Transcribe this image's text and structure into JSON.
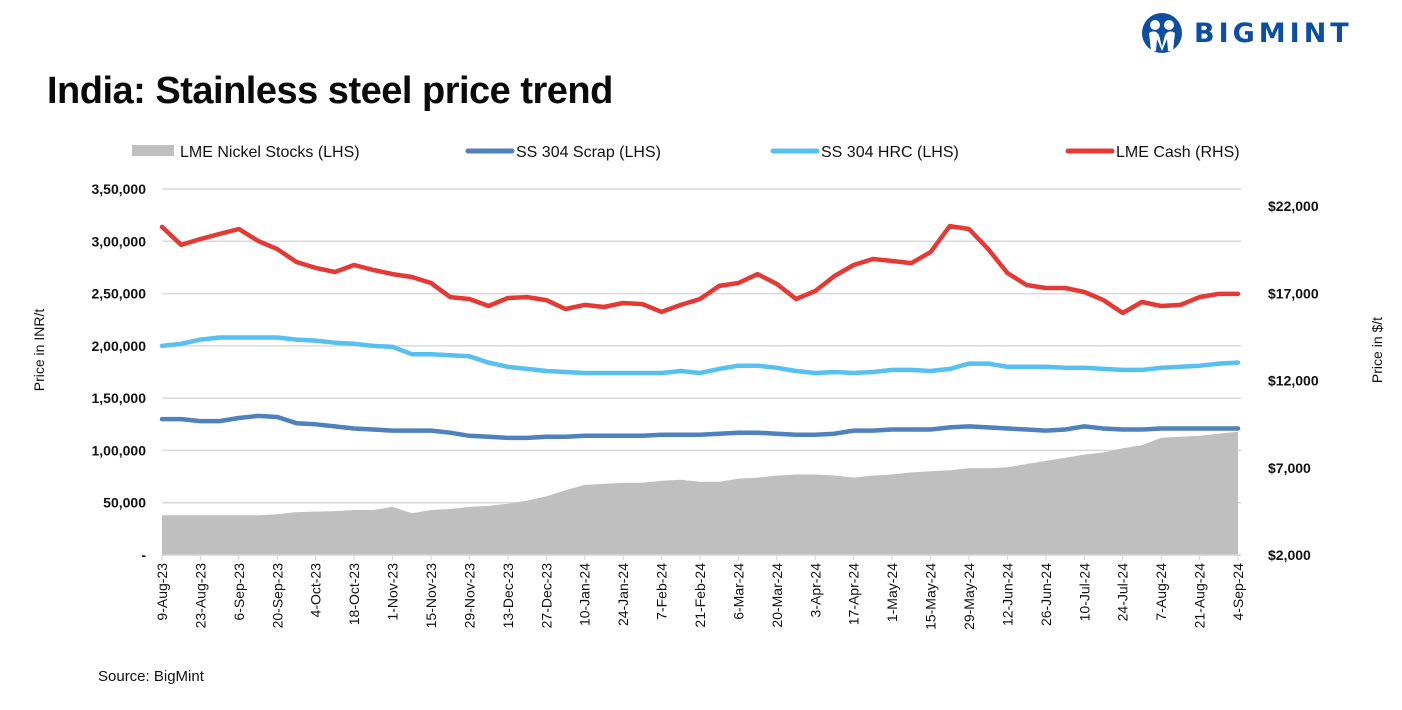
{
  "header": {
    "brand": "BIGMINT",
    "brand_color": "#0b4ea2",
    "title": "India: Stainless steel price trend"
  },
  "footer": {
    "source": "Source: BigMint"
  },
  "chart_data": {
    "type": "line",
    "title": "India: Stainless steel price trend",
    "ylabel": "Price in INR/t",
    "y2label": "Price in $/t",
    "ylim": [
      0,
      350000
    ],
    "y2lim": [
      2000,
      22000
    ],
    "grid": true,
    "legend_position": "top",
    "y_ticks": [
      "-",
      "50,000",
      "1,00,000",
      "1,50,000",
      "2,00,000",
      "2,50,000",
      "3,00,000",
      "3,50,000"
    ],
    "y2_ticks": [
      "$2,000",
      "$7,000",
      "$12,000",
      "$17,000",
      "$22,000"
    ],
    "x_ticks": [
      "9-Aug-23",
      "23-Aug-23",
      "6-Sep-23",
      "20-Sep-23",
      "4-Oct-23",
      "18-Oct-23",
      "1-Nov-23",
      "15-Nov-23",
      "29-Nov-23",
      "13-Dec-23",
      "27-Dec-23",
      "10-Jan-24",
      "24-Jan-24",
      "7-Feb-24",
      "21-Feb-24",
      "6-Mar-24",
      "20-Mar-24",
      "3-Apr-24",
      "17-Apr-24",
      "1-May-24",
      "15-May-24",
      "29-May-24",
      "12-Jun-24",
      "26-Jun-24",
      "10-Jul-24",
      "24-Jul-24",
      "7-Aug-24",
      "21-Aug-24",
      "4-Sep-24"
    ],
    "x": [
      "9-Aug-23",
      "16-Aug-23",
      "23-Aug-23",
      "30-Aug-23",
      "6-Sep-23",
      "13-Sep-23",
      "20-Sep-23",
      "27-Sep-23",
      "4-Oct-23",
      "11-Oct-23",
      "18-Oct-23",
      "25-Oct-23",
      "1-Nov-23",
      "8-Nov-23",
      "15-Nov-23",
      "22-Nov-23",
      "29-Nov-23",
      "6-Dec-23",
      "13-Dec-23",
      "20-Dec-23",
      "27-Dec-23",
      "3-Jan-24",
      "10-Jan-24",
      "17-Jan-24",
      "24-Jan-24",
      "31-Jan-24",
      "7-Feb-24",
      "14-Feb-24",
      "21-Feb-24",
      "28-Feb-24",
      "6-Mar-24",
      "13-Mar-24",
      "20-Mar-24",
      "27-Mar-24",
      "3-Apr-24",
      "10-Apr-24",
      "17-Apr-24",
      "24-Apr-24",
      "1-May-24",
      "8-May-24",
      "15-May-24",
      "22-May-24",
      "29-May-24",
      "5-Jun-24",
      "12-Jun-24",
      "19-Jun-24",
      "26-Jun-24",
      "3-Jul-24",
      "10-Jul-24",
      "17-Jul-24",
      "24-Jul-24",
      "31-Jul-24",
      "7-Aug-24",
      "14-Aug-24",
      "21-Aug-24",
      "28-Aug-24",
      "4-Sep-24"
    ],
    "series": [
      {
        "name": "LME Nickel Stocks (LHS)",
        "type": "area",
        "axis": "left",
        "color": "#bfbfbf",
        "values": [
          38000,
          38000,
          38000,
          38000,
          38000,
          38000,
          39000,
          41000,
          41500,
          42000,
          43000,
          43000,
          46000,
          40000,
          43000,
          44000,
          46000,
          47000,
          49000,
          52000,
          56000,
          62000,
          67000,
          68000,
          69000,
          69000,
          71000,
          72000,
          70000,
          70000,
          73000,
          74000,
          76000,
          77000,
          77000,
          76000,
          74000,
          76000,
          77000,
          79000,
          80000,
          81000,
          83000,
          83000,
          84000,
          87000,
          90000,
          93000,
          96000,
          98000,
          102000,
          105000,
          112000,
          113000,
          114000,
          116000,
          118000
        ]
      },
      {
        "name": "SS 304 Scrap (LHS)",
        "type": "line",
        "axis": "left",
        "color": "#4f81bd",
        "values": [
          130000,
          130000,
          128000,
          128000,
          131000,
          133000,
          132000,
          126000,
          125000,
          123000,
          121000,
          120000,
          119000,
          119000,
          119000,
          117000,
          114000,
          113000,
          112000,
          112000,
          113000,
          113000,
          114000,
          114000,
          114000,
          114000,
          115000,
          115000,
          115000,
          116000,
          117000,
          117000,
          116000,
          115000,
          115000,
          116000,
          119000,
          119000,
          120000,
          120000,
          120000,
          122000,
          123000,
          122000,
          121000,
          120000,
          119000,
          120000,
          123000,
          121000,
          120000,
          120000,
          121000,
          121000,
          121000,
          121000,
          121000
        ]
      },
      {
        "name": "SS 304 HRC (LHS)",
        "type": "line",
        "axis": "left",
        "color": "#56c1f0",
        "values": [
          200000,
          202000,
          206000,
          208000,
          208000,
          208000,
          208000,
          206000,
          205000,
          203000,
          202000,
          200000,
          199000,
          192000,
          192000,
          191000,
          190000,
          184000,
          180000,
          178000,
          176000,
          175000,
          174000,
          174000,
          174000,
          174000,
          174000,
          176000,
          174000,
          178000,
          181000,
          181000,
          179000,
          176000,
          174000,
          175000,
          174000,
          175000,
          177000,
          177000,
          176000,
          178000,
          183000,
          183000,
          180000,
          180000,
          180000,
          179000,
          179000,
          178000,
          177000,
          177000,
          179000,
          180000,
          181000,
          183000,
          184000
        ]
      },
      {
        "name": "LME Cash (RHS)",
        "type": "line",
        "axis": "right",
        "color": "#e53935",
        "values": [
          20800,
          19770,
          20110,
          20400,
          20680,
          20000,
          19530,
          18790,
          18450,
          18220,
          18620,
          18330,
          18100,
          17930,
          17590,
          16780,
          16670,
          16270,
          16730,
          16780,
          16610,
          16100,
          16330,
          16210,
          16440,
          16380,
          15930,
          16330,
          16670,
          17420,
          17590,
          18100,
          17530,
          16670,
          17130,
          17990,
          18620,
          18960,
          18850,
          18730,
          19360,
          20850,
          20680,
          19530,
          18160,
          17470,
          17300,
          17300,
          17070,
          16610,
          15870,
          16500,
          16270,
          16330,
          16780,
          16960,
          16960
        ]
      }
    ]
  }
}
